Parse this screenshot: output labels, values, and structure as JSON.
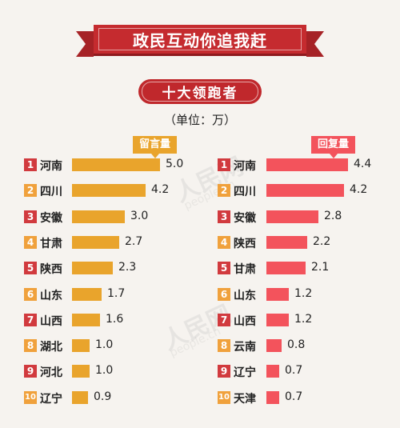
{
  "header": {
    "title": "政民互动你追我赶",
    "subtitle": "十大领跑者",
    "unit": "（单位：万）"
  },
  "watermark": {
    "text": "人民网",
    "sub": "people.cn"
  },
  "colors": {
    "left_bar": "#e9a42c",
    "right_bar": "#f3535c",
    "rank_odd_red": "#d13a3e",
    "rank_even_orange": "#f0a13c",
    "banner": "#c52b2f"
  },
  "chart_data": [
    {
      "type": "bar",
      "orientation": "horizontal",
      "title": "留言量",
      "ranks": [
        "1",
        "2",
        "3",
        "4",
        "5",
        "6",
        "7",
        "8",
        "9",
        "10"
      ],
      "categories": [
        "河南",
        "四川",
        "安徽",
        "甘肃",
        "陕西",
        "山东",
        "山西",
        "湖北",
        "河北",
        "辽宁"
      ],
      "values": [
        5.0,
        4.2,
        3.0,
        2.7,
        2.3,
        1.7,
        1.6,
        1.0,
        1.0,
        0.9
      ],
      "value_labels": [
        "5.0",
        "4.2",
        "3.0",
        "2.7",
        "2.3",
        "1.7",
        "1.6",
        "1.0",
        "1.0",
        "0.9"
      ],
      "xlim": [
        0,
        5.0
      ],
      "grid": false
    },
    {
      "type": "bar",
      "orientation": "horizontal",
      "title": "回复量",
      "ranks": [
        "1",
        "2",
        "3",
        "4",
        "5",
        "6",
        "7",
        "8",
        "9",
        "10"
      ],
      "categories": [
        "河南",
        "四川",
        "安徽",
        "陕西",
        "甘肃",
        "山东",
        "山西",
        "云南",
        "辽宁",
        "天津"
      ],
      "values": [
        4.4,
        4.2,
        2.8,
        2.2,
        2.1,
        1.2,
        1.2,
        0.8,
        0.7,
        0.7
      ],
      "value_labels": [
        "4.4",
        "4.2",
        "2.8",
        "2.2",
        "2.1",
        "1.2",
        "1.2",
        "0.8",
        "0.7",
        "0.7"
      ],
      "xlim": [
        0,
        4.4
      ],
      "grid": false
    }
  ]
}
